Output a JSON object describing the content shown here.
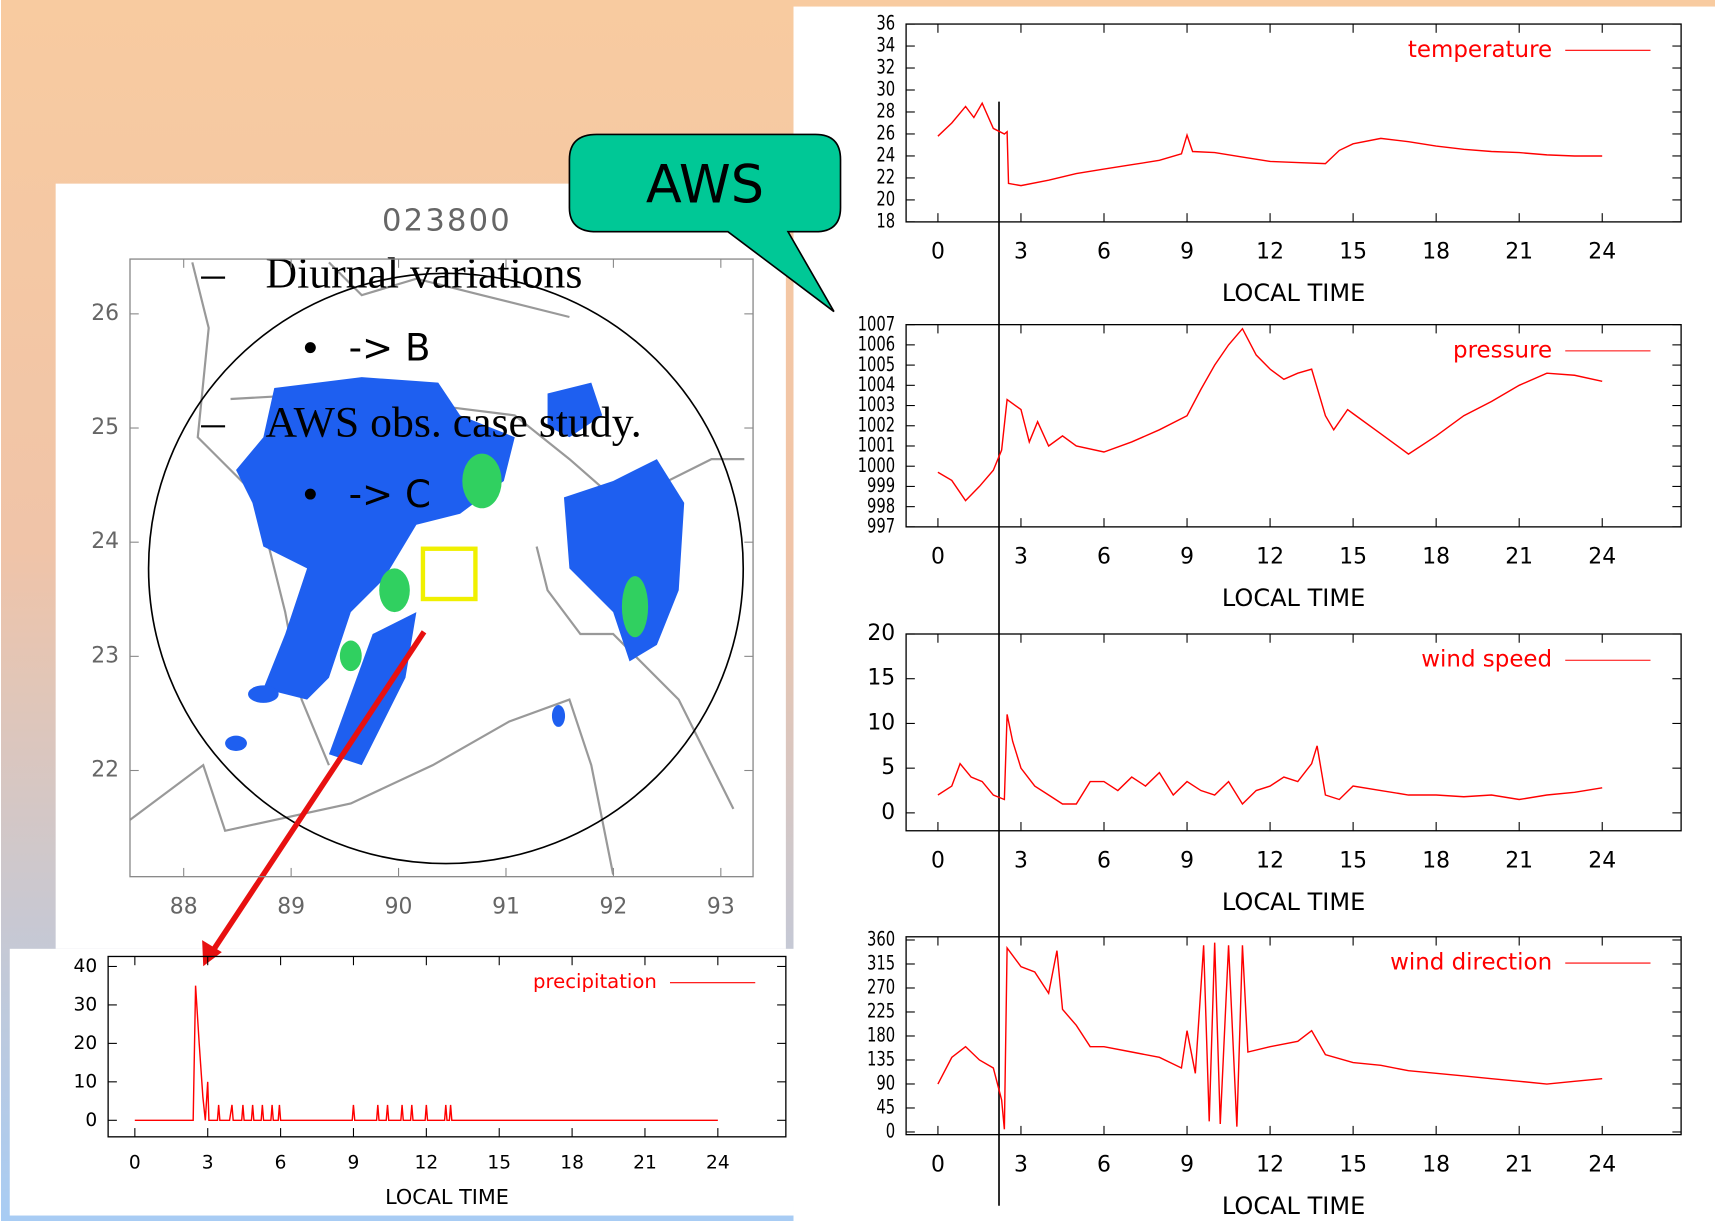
{
  "slide": {
    "bullets": [
      "Diurnal variations",
      "->  B",
      "AWS obs. case study.",
      "->  C"
    ],
    "callout": "AWS"
  },
  "chart_data": [
    {
      "type": "map",
      "title": "023800",
      "xlim": [
        87.5,
        93.3
      ],
      "ylim": [
        21.07,
        26.48
      ],
      "xticks": [
        88,
        89,
        90,
        91,
        92,
        93
      ],
      "yticks": [
        22,
        23,
        24,
        25,
        26
      ]
    },
    {
      "type": "line",
      "xlabel": "LOCAL TIME",
      "xlim": [
        -1.1,
        26.8
      ],
      "ylim": [
        -4.3,
        42.6
      ],
      "xticks": [
        0,
        3,
        6,
        9,
        12,
        15,
        18,
        21,
        24
      ],
      "yticks": [
        0,
        10,
        20,
        30,
        40
      ],
      "x": [
        0,
        2.4,
        2.5,
        2.65,
        2.8,
        2.9,
        3.0,
        3.05,
        3.4,
        3.45,
        3.5,
        3.9,
        4.0,
        4.05,
        4.4,
        4.45,
        4.5,
        4.8,
        4.85,
        4.9,
        5.2,
        5.25,
        5.3,
        5.6,
        5.65,
        5.7,
        5.9,
        5.95,
        6.0,
        8.95,
        9.0,
        9.05,
        9.95,
        10.0,
        10.05,
        10.35,
        10.4,
        10.45,
        10.95,
        11.0,
        11.05,
        11.35,
        11.4,
        11.45,
        11.95,
        12.0,
        12.05,
        12.75,
        12.8,
        12.85,
        12.95,
        13.0,
        13.05,
        24
      ],
      "series": [
        {
          "name": "precipitation",
          "color": "#ff0000",
          "values": [
            0,
            0,
            35,
            20,
            6,
            0,
            10,
            0,
            0,
            4,
            0,
            0,
            4,
            0,
            0,
            4,
            0,
            0,
            4,
            0,
            0,
            4,
            0,
            0,
            4,
            0,
            0,
            4,
            0,
            0,
            4,
            0,
            0,
            4,
            0,
            0,
            4,
            0,
            0,
            4,
            0,
            0,
            4,
            0,
            0,
            4,
            0,
            0,
            4,
            0,
            0,
            4,
            0,
            0
          ]
        }
      ]
    },
    {
      "type": "line",
      "xlabel": "LOCAL TIME",
      "xlim": [
        -1.15,
        26.85
      ],
      "ylim": [
        18,
        36
      ],
      "xticks": [
        0,
        3,
        6,
        9,
        12,
        15,
        18,
        21,
        24
      ],
      "yticks": [
        18,
        20,
        22,
        24,
        26,
        28,
        30,
        32,
        34,
        36
      ],
      "x": [
        0,
        0.5,
        1,
        1.3,
        1.6,
        2,
        2.4,
        2.5,
        2.55,
        3,
        4,
        5,
        6,
        7,
        8,
        8.8,
        9,
        9.2,
        10,
        11,
        12,
        13,
        14,
        14.5,
        15,
        16,
        17,
        18,
        19,
        20,
        21,
        22,
        23,
        24
      ],
      "series": [
        {
          "name": "temperature",
          "color": "#ff0000",
          "values": [
            25.8,
            27,
            28.5,
            27.5,
            28.8,
            26.5,
            26,
            26.2,
            21.5,
            21.3,
            21.8,
            22.4,
            22.8,
            23.2,
            23.6,
            24.2,
            25.9,
            24.4,
            24.3,
            23.9,
            23.5,
            23.4,
            23.3,
            24.5,
            25.1,
            25.6,
            25.3,
            24.9,
            24.6,
            24.4,
            24.3,
            24.1,
            24,
            24
          ]
        }
      ]
    },
    {
      "type": "line",
      "xlabel": "LOCAL TIME",
      "xlim": [
        -1.15,
        26.85
      ],
      "ylim": [
        997,
        1007
      ],
      "xticks": [
        0,
        3,
        6,
        9,
        12,
        15,
        18,
        21,
        24
      ],
      "yticks": [
        997,
        998,
        999,
        1000,
        1001,
        1002,
        1003,
        1004,
        1005,
        1006,
        1007
      ],
      "x": [
        0,
        0.5,
        1,
        1.5,
        2,
        2.3,
        2.5,
        3,
        3.3,
        3.6,
        4,
        4.5,
        5,
        6,
        7,
        8,
        9,
        9.5,
        10,
        10.5,
        11,
        11.5,
        12,
        12.5,
        13,
        13.5,
        14,
        14.3,
        14.8,
        15,
        16,
        17,
        18,
        19,
        20,
        21,
        22,
        23,
        24
      ],
      "series": [
        {
          "name": "pressure",
          "color": "#ff0000",
          "values": [
            999.7,
            999.3,
            998.3,
            999,
            999.8,
            1000.8,
            1003.3,
            1002.8,
            1001.2,
            1002.2,
            1001,
            1001.5,
            1001,
            1000.7,
            1001.2,
            1001.8,
            1002.5,
            1003.8,
            1005,
            1006,
            1006.8,
            1005.5,
            1004.8,
            1004.3,
            1004.6,
            1004.8,
            1002.5,
            1001.8,
            1002.8,
            1002.6,
            1001.6,
            1000.6,
            1001.5,
            1002.5,
            1003.2,
            1004,
            1004.6,
            1004.5,
            1004.2
          ]
        }
      ]
    },
    {
      "type": "line",
      "xlabel": "LOCAL TIME",
      "xlim": [
        -1.15,
        26.85
      ],
      "ylim": [
        -2,
        20
      ],
      "xticks": [
        0,
        3,
        6,
        9,
        12,
        15,
        18,
        21,
        24
      ],
      "yticks": [
        0,
        5,
        10,
        15,
        20
      ],
      "x": [
        0,
        0.5,
        0.8,
        1.2,
        1.6,
        2,
        2.4,
        2.5,
        2.7,
        3,
        3.5,
        4,
        4.5,
        5,
        5.5,
        6,
        6.5,
        7,
        7.5,
        8,
        8.5,
        9,
        9.5,
        10,
        10.5,
        11,
        11.5,
        12,
        12.5,
        13,
        13.5,
        13.7,
        14,
        14.5,
        15,
        16,
        17,
        18,
        19,
        20,
        21,
        22,
        23,
        24
      ],
      "series": [
        {
          "name": "wind speed",
          "color": "#ff0000",
          "values": [
            2,
            3,
            5.5,
            4,
            3.5,
            2,
            1.5,
            11,
            8,
            5,
            3,
            2,
            1,
            1,
            3.5,
            3.5,
            2.5,
            4,
            3,
            4.5,
            2,
            3.5,
            2.5,
            2,
            3.5,
            1,
            2.5,
            3,
            4,
            3.5,
            5.5,
            7.5,
            2,
            1.5,
            3,
            2.5,
            2,
            2,
            1.8,
            2,
            1.5,
            2,
            2.3,
            2.8
          ]
        }
      ]
    },
    {
      "type": "line",
      "xlabel": "LOCAL TIME",
      "xlim": [
        -1.15,
        26.85
      ],
      "ylim": [
        -5,
        366
      ],
      "xticks": [
        0,
        3,
        6,
        9,
        12,
        15,
        18,
        21,
        24
      ],
      "yticks": [
        0,
        45,
        90,
        135,
        180,
        225,
        270,
        315,
        360
      ],
      "x": [
        0,
        0.5,
        1,
        1.5,
        2,
        2.3,
        2.4,
        2.5,
        3,
        3.5,
        4,
        4.3,
        4.5,
        5,
        5.5,
        6,
        7,
        8,
        8.8,
        9,
        9.3,
        9.6,
        9.8,
        10,
        10.2,
        10.5,
        10.8,
        11,
        11.2,
        12,
        13,
        13.5,
        14,
        15,
        16,
        17,
        18,
        19,
        20,
        21,
        22,
        23,
        24
      ],
      "series": [
        {
          "name": "wind direction",
          "color": "#ff0000",
          "values": [
            90,
            140,
            160,
            135,
            120,
            60,
            5,
            345,
            310,
            300,
            260,
            340,
            230,
            200,
            160,
            160,
            150,
            140,
            120,
            190,
            110,
            350,
            20,
            355,
            15,
            350,
            10,
            350,
            150,
            160,
            170,
            190,
            145,
            130,
            125,
            115,
            110,
            105,
            100,
            95,
            90,
            95,
            100
          ]
        }
      ]
    }
  ]
}
